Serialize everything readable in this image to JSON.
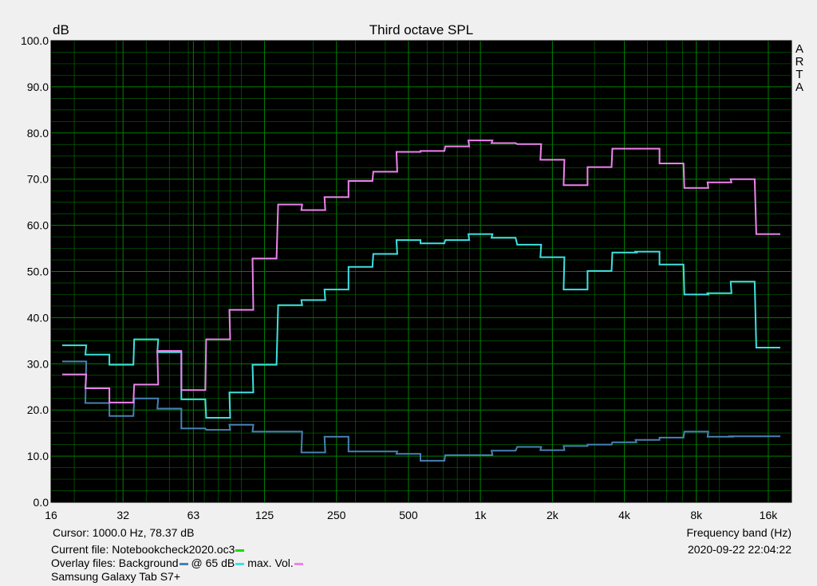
{
  "chart_data": {
    "type": "line",
    "title": "Third octave SPL",
    "ylabel": "dB",
    "xlabel": "Frequency band (Hz)",
    "side_label": [
      "A",
      "R",
      "T",
      "A"
    ],
    "ylim": [
      0,
      100
    ],
    "xlim": [
      16,
      20000
    ],
    "x_scale": "log",
    "step": true,
    "grid": true,
    "background": "#000000",
    "grid_color": "#008000",
    "y_ticks": [
      "0.0",
      "10.0",
      "20.0",
      "30.0",
      "40.0",
      "50.0",
      "60.0",
      "70.0",
      "80.0",
      "90.0",
      "100.0"
    ],
    "x_ticks": [
      {
        "label": "16",
        "value": 16
      },
      {
        "label": "32",
        "value": 32
      },
      {
        "label": "63",
        "value": 63
      },
      {
        "label": "125",
        "value": 125
      },
      {
        "label": "250",
        "value": 250
      },
      {
        "label": "500",
        "value": 500
      },
      {
        "label": "1k",
        "value": 1000
      },
      {
        "label": "2k",
        "value": 2000
      },
      {
        "label": "4k",
        "value": 4000
      },
      {
        "label": "8k",
        "value": 8000
      },
      {
        "label": "16k",
        "value": 16000
      }
    ],
    "x": [
      20,
      25,
      31.5,
      40,
      50,
      63,
      80,
      100,
      125,
      160,
      200,
      250,
      315,
      400,
      500,
      630,
      800,
      1000,
      1250,
      1600,
      2000,
      2500,
      3150,
      4000,
      5000,
      6300,
      8000,
      10000,
      12500,
      16000
    ],
    "series": [
      {
        "name": "Background",
        "color": "#4682b4",
        "values": [
          30.5,
          21.5,
          18.7,
          22.5,
          20.3,
          16.0,
          15.7,
          16.8,
          15.3,
          15.3,
          10.8,
          14.2,
          11.0,
          11.0,
          10.5,
          9.0,
          10.2,
          10.2,
          11.2,
          12.0,
          11.3,
          12.2,
          12.5,
          13.0,
          13.5,
          14.0,
          15.3,
          14.2,
          14.3,
          14.3
        ]
      },
      {
        "name": "@ 65 dB",
        "color": "#40e0e0",
        "values": [
          34.0,
          32.0,
          29.8,
          35.3,
          32.5,
          22.3,
          18.3,
          23.8,
          29.8,
          42.7,
          43.8,
          46.1,
          51.0,
          53.8,
          56.8,
          56.1,
          56.8,
          58.1,
          57.3,
          55.8,
          53.1,
          46.1,
          50.1,
          54.1,
          54.3,
          51.5,
          45.0,
          45.3,
          47.8,
          33.5
        ]
      },
      {
        "name": "max. Vol.",
        "color": "#ee82ee",
        "values": [
          27.7,
          24.7,
          21.6,
          25.5,
          32.8,
          24.3,
          35.3,
          41.7,
          52.8,
          64.5,
          63.3,
          66.1,
          69.6,
          71.6,
          75.9,
          76.1,
          77.1,
          78.4,
          77.8,
          77.6,
          74.2,
          68.7,
          72.6,
          76.6,
          76.6,
          73.4,
          68.1,
          69.3,
          70.0,
          58.1
        ]
      }
    ]
  },
  "info": {
    "cursor": "Cursor:  1000.0 Hz, 78.37 dB",
    "current_file_label": "Current file: Notebookcheck2020.oc3",
    "current_file_color": "#00e000",
    "overlay_prefix": "Overlay files: Background",
    "overlay_65": "@ 65 dB",
    "overlay_max": "max. Vol.",
    "device": "Samsung Galaxy Tab S7+",
    "date": "2020-09-22  22:04:22"
  }
}
